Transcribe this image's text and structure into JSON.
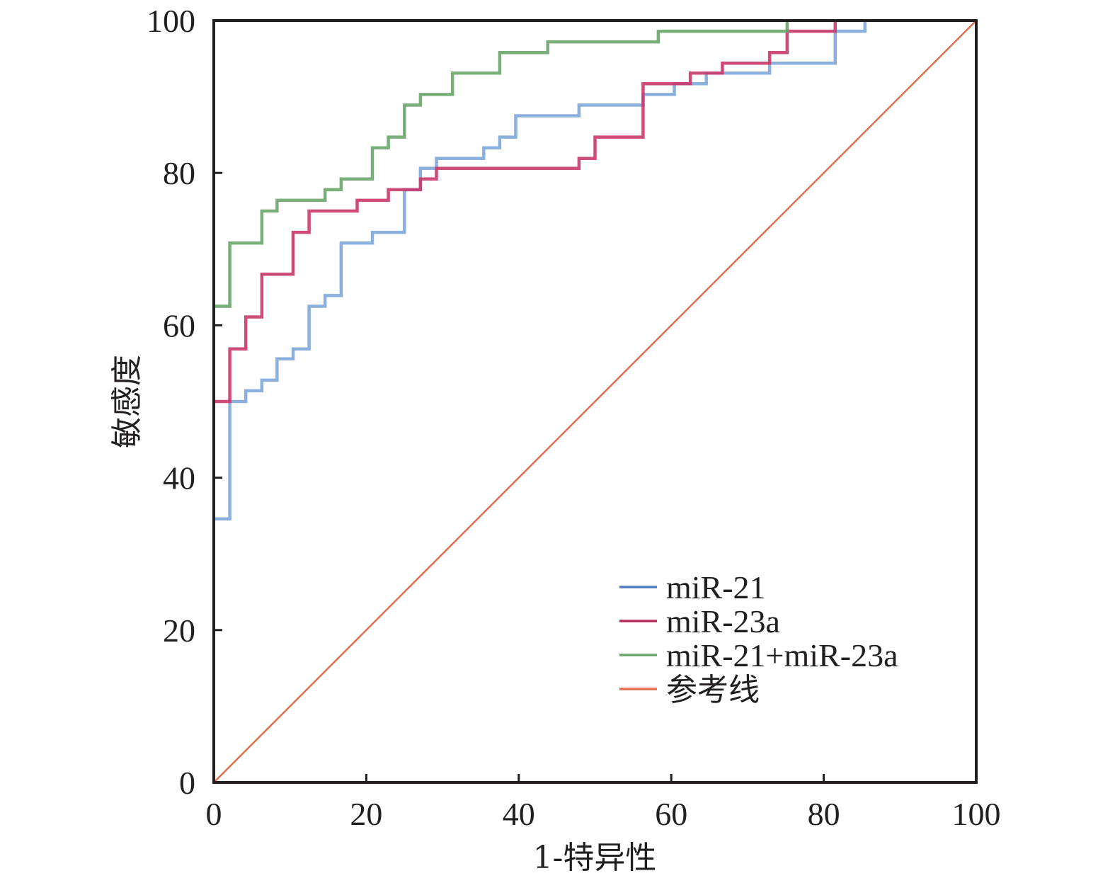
{
  "chart_data": {
    "type": "line",
    "title": "",
    "xlabel": "1-特异性",
    "ylabel": "敏感度",
    "xlim": [
      0,
      100
    ],
    "ylim": [
      0,
      100
    ],
    "grid": false,
    "legend_position": "bottom-right",
    "x_ticks": [
      "0",
      "20",
      "40",
      "60",
      "80",
      "100"
    ],
    "y_ticks": [
      "0",
      "20",
      "40",
      "60",
      "80",
      "100"
    ],
    "series": [
      {
        "name": "miR-21",
        "color": "#7fa7da",
        "legend_color": "#4f7fc0",
        "step": true,
        "points": [
          [
            0,
            34.6
          ],
          [
            2.1,
            34.6
          ],
          [
            2.1,
            50
          ],
          [
            4.2,
            50
          ],
          [
            4.2,
            51.4
          ],
          [
            6.3,
            51.4
          ],
          [
            6.3,
            52.8
          ],
          [
            8.3,
            52.8
          ],
          [
            8.3,
            55.6
          ],
          [
            10.4,
            55.6
          ],
          [
            10.4,
            56.9
          ],
          [
            12.5,
            56.9
          ],
          [
            12.5,
            62.5
          ],
          [
            14.6,
            62.5
          ],
          [
            14.6,
            63.9
          ],
          [
            16.7,
            63.9
          ],
          [
            16.7,
            70.8
          ],
          [
            20.8,
            70.8
          ],
          [
            20.8,
            72.2
          ],
          [
            25.0,
            72.2
          ],
          [
            25.0,
            77.8
          ],
          [
            27.1,
            77.8
          ],
          [
            27.1,
            80.6
          ],
          [
            29.2,
            80.6
          ],
          [
            29.2,
            81.9
          ],
          [
            35.4,
            81.9
          ],
          [
            35.4,
            83.3
          ],
          [
            37.5,
            83.3
          ],
          [
            37.5,
            84.7
          ],
          [
            39.6,
            84.7
          ],
          [
            39.6,
            87.5
          ],
          [
            47.9,
            87.5
          ],
          [
            47.9,
            88.9
          ],
          [
            56.3,
            88.9
          ],
          [
            56.3,
            90.3
          ],
          [
            60.4,
            90.3
          ],
          [
            60.4,
            91.7
          ],
          [
            64.6,
            91.7
          ],
          [
            64.6,
            93.1
          ],
          [
            72.9,
            93.1
          ],
          [
            72.9,
            94.4
          ],
          [
            81.5,
            94.4
          ],
          [
            81.5,
            98.6
          ],
          [
            85.4,
            98.6
          ],
          [
            85.4,
            100
          ]
        ]
      },
      {
        "name": "miR-23a",
        "color": "#c9386a",
        "legend_color": "#b8285a",
        "step": true,
        "points": [
          [
            0,
            50
          ],
          [
            2.1,
            50
          ],
          [
            2.1,
            56.9
          ],
          [
            4.2,
            56.9
          ],
          [
            4.2,
            61.1
          ],
          [
            6.3,
            61.1
          ],
          [
            6.3,
            66.7
          ],
          [
            10.4,
            66.7
          ],
          [
            10.4,
            72.2
          ],
          [
            12.5,
            72.2
          ],
          [
            12.5,
            75
          ],
          [
            18.8,
            75
          ],
          [
            18.8,
            76.4
          ],
          [
            22.9,
            76.4
          ],
          [
            22.9,
            77.8
          ],
          [
            27.1,
            77.8
          ],
          [
            27.1,
            79.2
          ],
          [
            29.2,
            79.2
          ],
          [
            29.2,
            80.6
          ],
          [
            47.9,
            80.6
          ],
          [
            47.9,
            81.9
          ],
          [
            50,
            81.9
          ],
          [
            50,
            84.7
          ],
          [
            56.3,
            84.7
          ],
          [
            56.3,
            91.7
          ],
          [
            62.5,
            91.7
          ],
          [
            62.5,
            93.1
          ],
          [
            66.7,
            93.1
          ],
          [
            66.7,
            94.4
          ],
          [
            72.9,
            94.4
          ],
          [
            72.9,
            95.8
          ],
          [
            75.2,
            95.8
          ],
          [
            75.2,
            98.6
          ],
          [
            81.5,
            98.6
          ],
          [
            81.5,
            100
          ]
        ]
      },
      {
        "name": "miR-21+miR-23a",
        "color": "#6aa56a",
        "legend_color": "#6aa56a",
        "step": true,
        "points": [
          [
            0,
            62.5
          ],
          [
            2.1,
            62.5
          ],
          [
            2.1,
            70.8
          ],
          [
            6.3,
            70.8
          ],
          [
            6.3,
            75
          ],
          [
            8.3,
            75
          ],
          [
            8.3,
            76.4
          ],
          [
            14.6,
            76.4
          ],
          [
            14.6,
            77.8
          ],
          [
            16.7,
            77.8
          ],
          [
            16.7,
            79.2
          ],
          [
            20.8,
            79.2
          ],
          [
            20.8,
            83.3
          ],
          [
            22.9,
            83.3
          ],
          [
            22.9,
            84.7
          ],
          [
            25,
            84.7
          ],
          [
            25,
            88.9
          ],
          [
            27.1,
            88.9
          ],
          [
            27.1,
            90.3
          ],
          [
            31.3,
            90.3
          ],
          [
            31.3,
            93.1
          ],
          [
            37.5,
            93.1
          ],
          [
            37.5,
            95.8
          ],
          [
            43.8,
            95.8
          ],
          [
            43.8,
            97.2
          ],
          [
            58.3,
            97.2
          ],
          [
            58.3,
            98.6
          ],
          [
            75.2,
            98.6
          ],
          [
            75.2,
            100
          ]
        ]
      },
      {
        "name": "参考线",
        "color": "#e07050",
        "legend_color": "#e07050",
        "step": false,
        "points": [
          [
            0,
            0
          ],
          [
            100,
            100
          ]
        ]
      }
    ]
  }
}
